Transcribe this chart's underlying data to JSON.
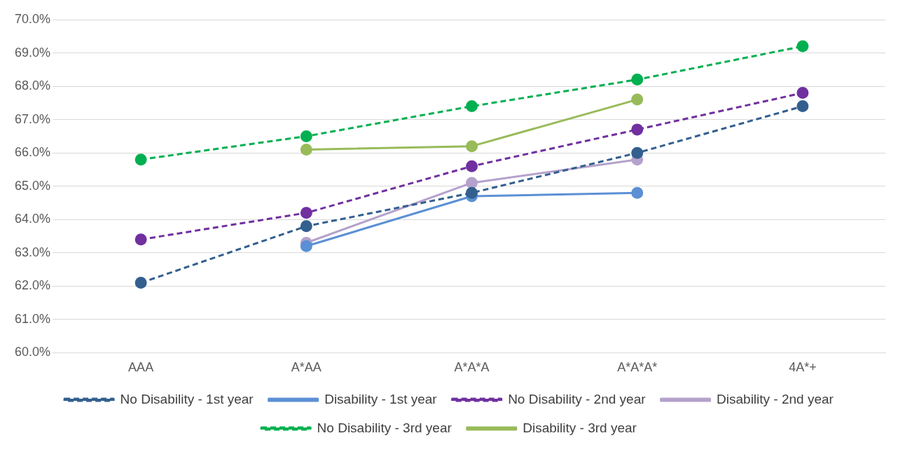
{
  "chart_data": {
    "type": "line",
    "categories": [
      "AAA",
      "A*AA",
      "A*A*A",
      "A*A*A*",
      "4A*+"
    ],
    "ylim": [
      60,
      70
    ],
    "yticks": [
      {
        "value": 60,
        "label": "60.0%"
      },
      {
        "value": 61,
        "label": "61.0%"
      },
      {
        "value": 62,
        "label": "62.0%"
      },
      {
        "value": 63,
        "label": "63.0%"
      },
      {
        "value": 64,
        "label": "64.0%"
      },
      {
        "value": 65,
        "label": "65.0%"
      },
      {
        "value": 66,
        "label": "66.0%"
      },
      {
        "value": 67,
        "label": "67.0%"
      },
      {
        "value": 68,
        "label": "68.0%"
      },
      {
        "value": 69,
        "label": "69.0%"
      },
      {
        "value": 70,
        "label": "70.0%"
      }
    ],
    "grid": "y",
    "legend": "bottom",
    "marker": "circle",
    "series": [
      {
        "name": "No Disability - 1st year",
        "color": "#335f8f",
        "line_style": "dashed",
        "values": [
          62.1,
          63.8,
          64.8,
          66.0,
          67.4
        ]
      },
      {
        "name": "Disability - 1st year",
        "color": "#5b90d5",
        "line_style": "solid",
        "values": [
          null,
          63.2,
          64.7,
          64.8,
          null
        ]
      },
      {
        "name": "No Disability - 2nd year",
        "color": "#7030a0",
        "line_style": "dashed",
        "values": [
          63.4,
          64.2,
          65.6,
          66.7,
          67.8
        ]
      },
      {
        "name": "Disability - 2nd year",
        "color": "#b4a2cc",
        "line_style": "solid",
        "values": [
          null,
          63.3,
          65.1,
          65.8,
          null
        ]
      },
      {
        "name": "No Disability - 3rd year",
        "color": "#00b050",
        "line_style": "dashed",
        "values": [
          65.8,
          66.5,
          67.4,
          68.2,
          69.2
        ]
      },
      {
        "name": "Disability - 3rd year",
        "color": "#98bb59",
        "line_style": "solid",
        "values": [
          null,
          66.1,
          66.2,
          67.6,
          null
        ]
      }
    ]
  }
}
